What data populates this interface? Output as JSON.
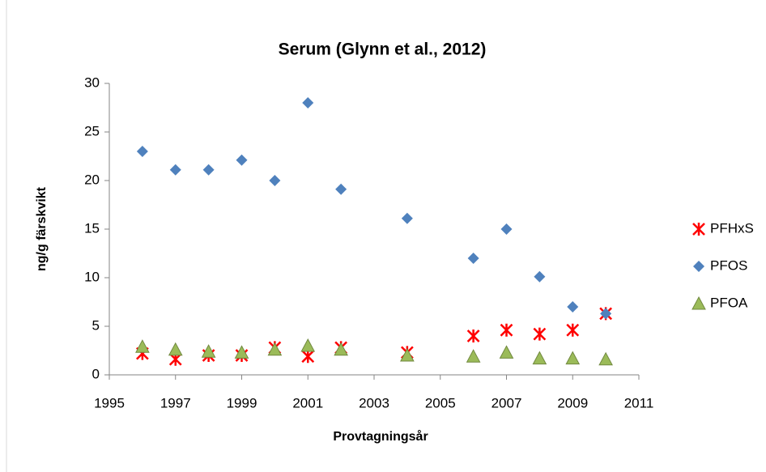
{
  "chart_data": {
    "type": "scatter",
    "title": "Serum (Glynn et al., 2012)",
    "x_label": "Provtagningsår",
    "y_label": "ng/g färskvikt",
    "x": [
      1996,
      1997,
      1998,
      1999,
      2000,
      2001,
      2002,
      2004,
      2006,
      2007,
      2008,
      2009,
      2010
    ],
    "series": [
      {
        "name": "PFHxS",
        "color": "#ff0000",
        "marker": "star",
        "values": [
          2.2,
          1.6,
          2.0,
          2.0,
          2.8,
          1.9,
          2.8,
          2.3,
          4.0,
          4.6,
          4.2,
          4.6,
          6.3
        ]
      },
      {
        "name": "PFOS",
        "color": "#4f81bd",
        "marker": "diamond",
        "values": [
          23,
          21.1,
          21.1,
          22.1,
          20,
          28,
          19.1,
          16.1,
          12,
          15,
          10.1,
          7,
          6.3
        ]
      },
      {
        "name": "PFOA",
        "color": "#9bbb59",
        "marker": "triangle",
        "values": [
          2.9,
          2.6,
          2.4,
          2.3,
          2.6,
          3.0,
          2.6,
          2.0,
          1.9,
          2.3,
          1.7,
          1.7,
          1.6
        ]
      }
    ],
    "xlim": [
      1995,
      2011
    ],
    "xticks": [
      1995,
      1997,
      1999,
      2001,
      2003,
      2005,
      2007,
      2009,
      2011
    ],
    "ylim": [
      0,
      30
    ],
    "yticks": [
      0,
      5,
      10,
      15,
      20,
      25,
      30
    ],
    "grid": false,
    "legend": "right"
  }
}
